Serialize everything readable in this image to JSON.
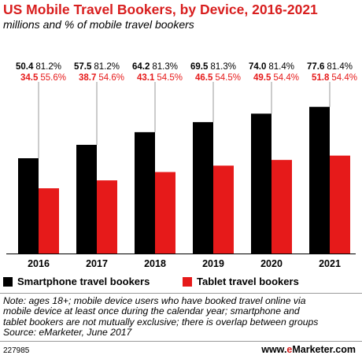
{
  "header": {
    "title": "US Mobile Travel Bookers, by Device, 2016-2021",
    "subtitle": "millions and % of mobile travel bookers"
  },
  "colors": {
    "smartphone": "#000000",
    "tablet": "#e61a1a",
    "title": "#d81e1e"
  },
  "chart_data": {
    "type": "bar",
    "title": "US Mobile Travel Bookers, by Device, 2016-2021",
    "subtitle": "millions and % of mobile travel bookers",
    "categories": [
      "2016",
      "2017",
      "2018",
      "2019",
      "2020",
      "2021"
    ],
    "ylim": [
      0,
      100
    ],
    "grid": false,
    "legend_position": "bottom",
    "series": [
      {
        "name": "Smartphone travel bookers",
        "values": [
          50.4,
          57.5,
          64.2,
          69.5,
          74.0,
          77.6
        ],
        "value_labels": [
          "50.4",
          "57.5",
          "64.2",
          "69.5",
          "74.0",
          "77.6"
        ],
        "pct_labels": [
          "81.2%",
          "81.2%",
          "81.3%",
          "81.3%",
          "81.4%",
          "81.4%"
        ]
      },
      {
        "name": "Tablet travel bookers",
        "values": [
          34.5,
          38.7,
          43.1,
          46.5,
          49.5,
          51.8
        ],
        "value_labels": [
          "34.5",
          "38.7",
          "43.1",
          "46.5",
          "49.5",
          "51.8"
        ],
        "pct_labels": [
          "55.6%",
          "54.6%",
          "54.5%",
          "54.5%",
          "54.4%",
          "54.4%"
        ]
      }
    ]
  },
  "legend": {
    "smartphone_label": "Smartphone travel bookers",
    "tablet_label": "Tablet travel bookers"
  },
  "footer": {
    "note_lines": [
      "Note: ages 18+; mobile device users who have booked travel online via",
      "mobile device at least once during the calendar year; smartphone and",
      "tablet bookers are not mutually exclusive; there is overlap between groups",
      "Source: eMarketer, June 2017"
    ],
    "chart_id": "227985",
    "brand_prefix": "www.",
    "brand_accent": "e",
    "brand_rest": "Marketer",
    "brand_suffix": ".com"
  }
}
